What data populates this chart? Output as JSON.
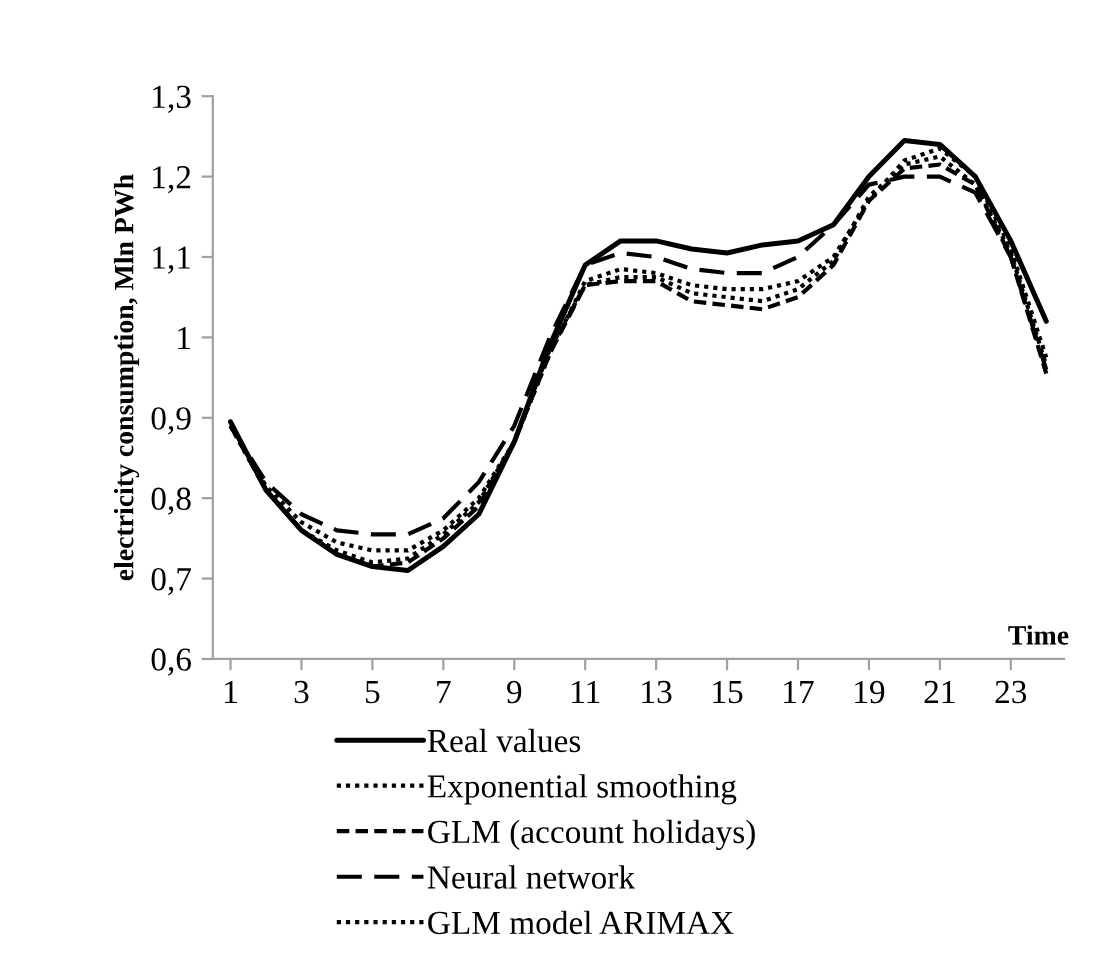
{
  "chart_data": {
    "type": "line",
    "xlabel": "Time",
    "ylabel": "electricity consumption, Mln PWh",
    "x": [
      1,
      2,
      3,
      4,
      5,
      6,
      7,
      8,
      9,
      10,
      11,
      12,
      13,
      14,
      15,
      16,
      17,
      18,
      19,
      20,
      21,
      22,
      23,
      24
    ],
    "xlim": [
      0.5,
      24.5
    ],
    "xticks": [
      1,
      3,
      5,
      7,
      9,
      11,
      13,
      15,
      17,
      19,
      21,
      23
    ],
    "ylim": [
      0.6,
      1.3
    ],
    "yticks": [
      {
        "value": 0.6,
        "label": "0,6"
      },
      {
        "value": 0.7,
        "label": "0,7"
      },
      {
        "value": 0.8,
        "label": "0,8"
      },
      {
        "value": 0.9,
        "label": "0,9"
      },
      1,
      {
        "value": 1.1,
        "label": "1,1"
      },
      {
        "value": 1.2,
        "label": "1,2"
      },
      {
        "value": 1.3,
        "label": "1,3"
      }
    ],
    "grid": false,
    "legend": "bottom",
    "marker": "none",
    "series": [
      {
        "name": "Real values",
        "color": "#000000",
        "line_style": "solid",
        "values": [
          0.895,
          0.81,
          0.76,
          0.73,
          0.715,
          0.71,
          0.74,
          0.78,
          0.87,
          0.99,
          1.09,
          1.12,
          1.12,
          1.11,
          1.105,
          1.115,
          1.12,
          1.14,
          1.2,
          1.245,
          1.24,
          1.2,
          1.12,
          1.02
        ]
      },
      {
        "name": "Exponential smoothing",
        "color": "#000000",
        "line_style": "dotted",
        "values": [
          0.89,
          0.815,
          0.77,
          0.745,
          0.735,
          0.735,
          0.76,
          0.8,
          0.87,
          0.98,
          1.07,
          1.085,
          1.08,
          1.065,
          1.06,
          1.06,
          1.07,
          1.1,
          1.17,
          1.22,
          1.235,
          1.2,
          1.11,
          0.975
        ]
      },
      {
        "name": "GLM (account holidays)",
        "color": "#000000",
        "line_style": "dashed",
        "values": [
          0.89,
          0.81,
          0.76,
          0.73,
          0.715,
          0.72,
          0.75,
          0.79,
          0.87,
          0.98,
          1.065,
          1.07,
          1.07,
          1.045,
          1.04,
          1.035,
          1.05,
          1.09,
          1.17,
          1.21,
          1.215,
          1.19,
          1.1,
          0.955
        ]
      },
      {
        "name": "Neural network",
        "color": "#000000",
        "line_style": "dashed",
        "values": [
          0.89,
          0.82,
          0.78,
          0.76,
          0.755,
          0.755,
          0.775,
          0.82,
          0.89,
          1.0,
          1.09,
          1.105,
          1.1,
          1.085,
          1.08,
          1.08,
          1.1,
          1.14,
          1.19,
          1.2,
          1.2,
          1.18,
          1.1,
          0.96
        ]
      },
      {
        "name": "GLM model ARIMAX",
        "color": "#000000",
        "line_style": "dotted",
        "values": [
          0.89,
          0.81,
          0.76,
          0.735,
          0.72,
          0.725,
          0.755,
          0.795,
          0.87,
          0.985,
          1.065,
          1.075,
          1.075,
          1.055,
          1.05,
          1.045,
          1.06,
          1.095,
          1.175,
          1.215,
          1.225,
          1.19,
          1.105,
          0.965
        ]
      }
    ]
  }
}
